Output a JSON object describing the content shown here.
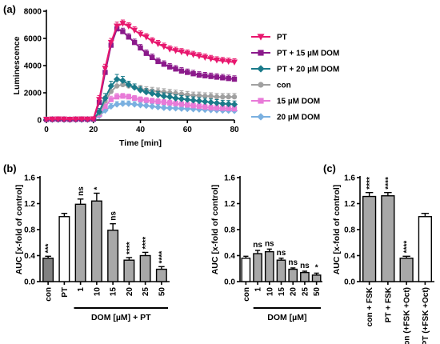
{
  "chart_data": [
    {
      "panel": "(a)",
      "type": "line",
      "xlabel": "Time [min]",
      "ylabel": "Luminescence",
      "xlim": [
        0,
        80
      ],
      "ylim": [
        0,
        8000
      ],
      "xticks": [
        "0",
        "20",
        "40",
        "60",
        "80"
      ],
      "yticks": [
        "0",
        "2000",
        "4000",
        "6000",
        "8000"
      ],
      "legend_position": "right",
      "x": [
        0,
        2.5,
        5,
        7.5,
        10,
        12.5,
        15,
        17.5,
        20,
        22.5,
        25,
        27.5,
        30,
        32.5,
        35,
        37.5,
        40,
        42.5,
        45,
        47.5,
        50,
        52.5,
        55,
        57.5,
        60,
        62.5,
        65,
        67.5,
        70,
        72.5,
        75,
        77.5,
        80
      ],
      "series": [
        {
          "name": "PT",
          "color": "#e8176e",
          "marker": "triangle-down",
          "values": [
            50,
            60,
            70,
            60,
            50,
            60,
            70,
            60,
            80,
            1500,
            3800,
            5700,
            6900,
            7100,
            6900,
            6600,
            6300,
            6100,
            5800,
            5600,
            5400,
            5200,
            5100,
            5000,
            4900,
            4800,
            4700,
            4600,
            4500,
            4400,
            4350,
            4300,
            4250
          ],
          "errors": [
            30,
            30,
            30,
            30,
            30,
            30,
            30,
            30,
            40,
            300,
            300,
            300,
            300,
            250,
            250,
            250,
            250,
            250,
            250,
            250,
            250,
            250,
            250,
            250,
            250,
            250,
            250,
            250,
            250,
            250,
            250,
            250,
            250
          ]
        },
        {
          "name": "PT + 15 µM DOM",
          "color": "#8b1a8b",
          "marker": "square",
          "values": [
            50,
            60,
            70,
            60,
            50,
            60,
            70,
            60,
            80,
            1300,
            3500,
            5500,
            6700,
            6500,
            6100,
            5700,
            5300,
            4900,
            4600,
            4300,
            4100,
            3900,
            3750,
            3600,
            3500,
            3400,
            3300,
            3250,
            3200,
            3150,
            3100,
            3050,
            3000
          ],
          "errors": [
            30,
            30,
            30,
            30,
            30,
            30,
            30,
            30,
            40,
            300,
            300,
            300,
            300,
            250,
            250,
            250,
            250,
            250,
            250,
            250,
            250,
            250,
            250,
            250,
            250,
            250,
            250,
            250,
            250,
            250,
            250,
            250,
            250
          ]
        },
        {
          "name": "PT + 20 µM DOM",
          "color": "#1a7a8a",
          "marker": "diamond",
          "values": [
            30,
            40,
            40,
            40,
            30,
            40,
            40,
            40,
            50,
            600,
            1600,
            2500,
            3000,
            2900,
            2600,
            2400,
            2200,
            2050,
            1950,
            1850,
            1750,
            1700,
            1600,
            1550,
            1500,
            1450,
            1400,
            1350,
            1300,
            1250,
            1200,
            1180,
            1150
          ],
          "errors": [
            30,
            30,
            30,
            30,
            30,
            30,
            30,
            30,
            40,
            250,
            350,
            350,
            350,
            300,
            250,
            250,
            250,
            250,
            250,
            250,
            250,
            250,
            250,
            250,
            250,
            250,
            250,
            250,
            250,
            250,
            250,
            250,
            250
          ]
        },
        {
          "name": "con",
          "color": "#a0a0a0",
          "marker": "circle",
          "values": [
            40,
            50,
            50,
            50,
            40,
            50,
            50,
            50,
            60,
            500,
            1400,
            2100,
            2500,
            2600,
            2500,
            2400,
            2300,
            2200,
            2150,
            2100,
            2050,
            2000,
            1950,
            1900,
            1850,
            1800,
            1800,
            1750,
            1750,
            1700,
            1700,
            1700,
            1700
          ],
          "errors": [
            30,
            30,
            30,
            30,
            30,
            30,
            30,
            30,
            40,
            250,
            350,
            350,
            350,
            300,
            250,
            250,
            250,
            250,
            250,
            250,
            250,
            250,
            250,
            250,
            250,
            250,
            250,
            250,
            250,
            250,
            250,
            250,
            250
          ]
        },
        {
          "name": "15 µM DOM",
          "color": "#e87ad8",
          "marker": "square",
          "values": [
            40,
            40,
            40,
            40,
            40,
            40,
            40,
            40,
            50,
            400,
            1000,
            1500,
            1700,
            1750,
            1700,
            1600,
            1500,
            1450,
            1400,
            1350,
            1300,
            1250,
            1200,
            1150,
            1100,
            1050,
            1000,
            950,
            900,
            880,
            860,
            840,
            820
          ],
          "errors": [
            30,
            30,
            30,
            30,
            30,
            30,
            30,
            30,
            40,
            200,
            250,
            250,
            250,
            200,
            200,
            200,
            200,
            200,
            200,
            200,
            200,
            200,
            200,
            200,
            200,
            200,
            200,
            200,
            200,
            200,
            200,
            200,
            200
          ]
        },
        {
          "name": "20 µM DOM",
          "color": "#7ab0e0",
          "marker": "diamond",
          "values": [
            30,
            30,
            30,
            30,
            30,
            30,
            30,
            30,
            40,
            300,
            700,
            1000,
            1150,
            1200,
            1200,
            1150,
            1100,
            1050,
            1000,
            950,
            900,
            880,
            860,
            840,
            820,
            800,
            780,
            760,
            740,
            720,
            700,
            690,
            680
          ],
          "errors": [
            30,
            30,
            30,
            30,
            30,
            30,
            30,
            30,
            40,
            150,
            200,
            200,
            200,
            200,
            200,
            200,
            200,
            200,
            200,
            200,
            200,
            200,
            200,
            200,
            200,
            200,
            200,
            200,
            200,
            200,
            200,
            200,
            200
          ]
        }
      ]
    },
    {
      "panel": "(b)",
      "type": "bar",
      "ylabel": "AUC [x-fold of control]",
      "group_label": "DOM [µM] + PT",
      "ylim": [
        0,
        1.6
      ],
      "yticks": [
        "0.0",
        "0.4",
        "0.8",
        "1.2",
        "1.6"
      ],
      "categories": [
        "con",
        "PT",
        "1",
        "10",
        "15",
        "20",
        "25",
        "50"
      ],
      "values": [
        0.36,
        1.0,
        1.19,
        1.24,
        0.79,
        0.33,
        0.4,
        0.19
      ],
      "errors": [
        0.03,
        0.05,
        0.08,
        0.12,
        0.1,
        0.04,
        0.05,
        0.04
      ],
      "fills": [
        "#808080",
        "#ffffff",
        "#a8a8a8",
        "#a8a8a8",
        "#a8a8a8",
        "#a8a8a8",
        "#a8a8a8",
        "#a8a8a8"
      ],
      "annotations": [
        "***",
        "",
        "ns",
        "*",
        "ns",
        "****",
        "****",
        "****"
      ]
    },
    {
      "panel": "(b) right",
      "type": "bar",
      "ylabel": "AUC [x-fold of control]",
      "group_label": "DOM [µM]",
      "ylim": [
        0,
        1.6
      ],
      "yticks": [
        "0.0",
        "0.4",
        "0.8",
        "1.2",
        "1.6"
      ],
      "categories": [
        "con",
        "1",
        "10",
        "15",
        "20",
        "25",
        "50"
      ],
      "values": [
        0.36,
        0.43,
        0.46,
        0.33,
        0.19,
        0.14,
        0.1
      ],
      "errors": [
        0.03,
        0.05,
        0.04,
        0.03,
        0.02,
        0.02,
        0.03
      ],
      "fills": [
        "#ffffff",
        "#a8a8a8",
        "#a8a8a8",
        "#a8a8a8",
        "#a8a8a8",
        "#a8a8a8",
        "#a8a8a8"
      ],
      "annotations": [
        "",
        "ns",
        "ns",
        "ns",
        "ns",
        "ns",
        "*"
      ]
    },
    {
      "panel": "(c)",
      "type": "bar",
      "ylabel": "AUC [x-fold of control]",
      "ylim": [
        0,
        1.6
      ],
      "yticks": [
        "0.0",
        "0.4",
        "0.8",
        "1.2",
        "1.6"
      ],
      "categories": [
        "con + FSK",
        "PT + FSK",
        "con (+FSK +Oct)",
        "PT (+FSK +Oct)"
      ],
      "values": [
        1.31,
        1.32,
        0.36,
        1.0
      ],
      "errors": [
        0.06,
        0.05,
        0.03,
        0.05
      ],
      "fills": [
        "#a8a8a8",
        "#a8a8a8",
        "#a8a8a8",
        "#ffffff"
      ],
      "annotations": [
        "****",
        "****",
        "****",
        ""
      ]
    }
  ]
}
